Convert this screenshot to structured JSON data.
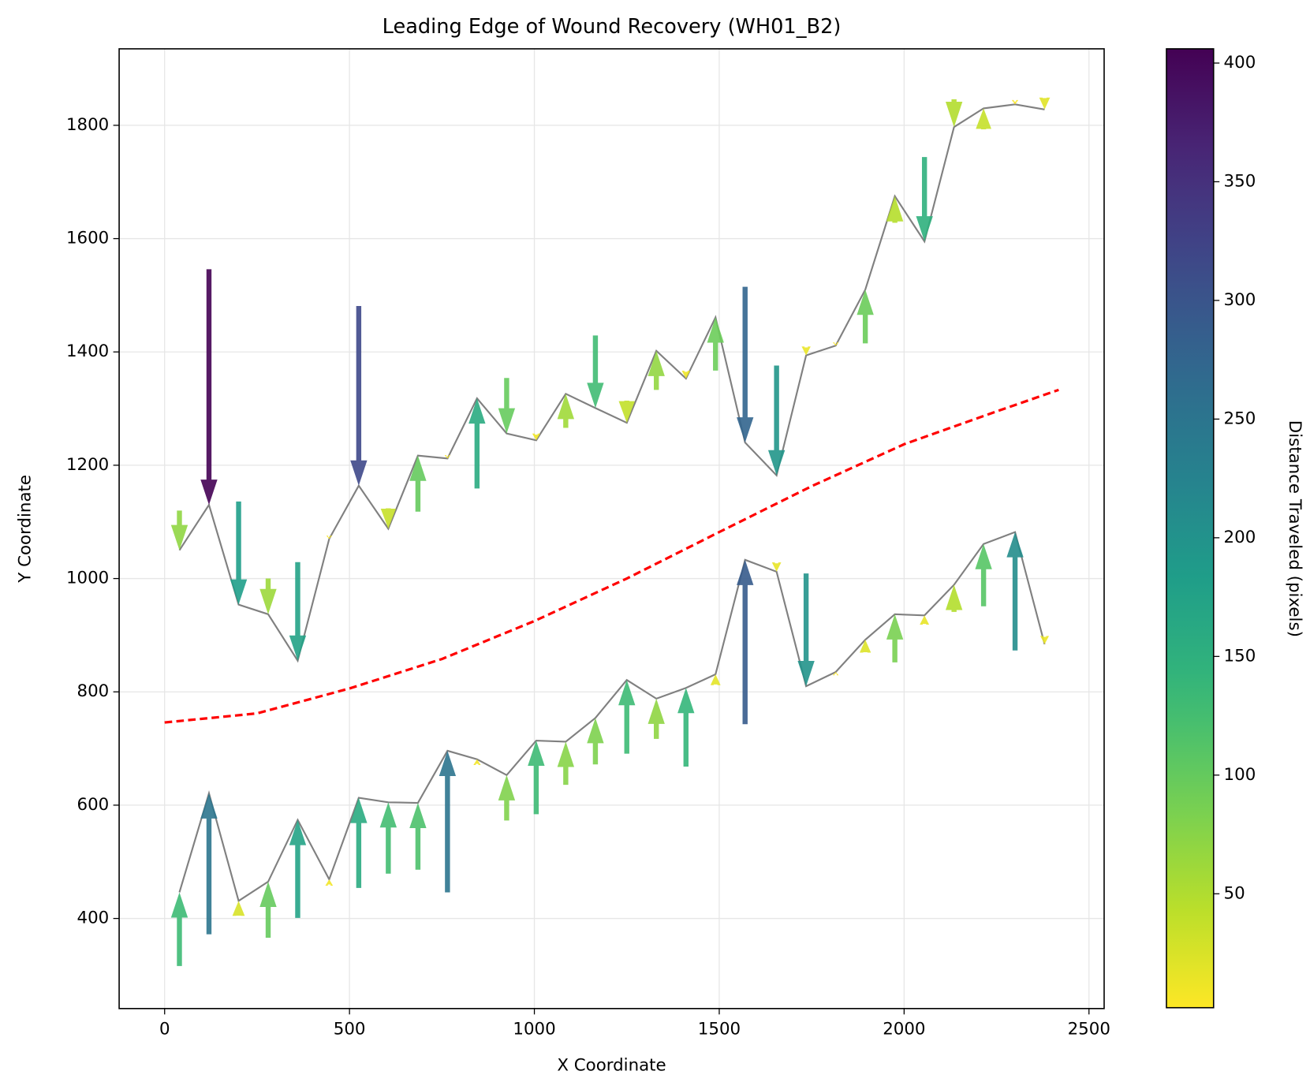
{
  "chart_data": {
    "type": "quiver",
    "title": "Leading Edge of Wound Recovery (WH01_B2)",
    "x_label": "X Coordinate",
    "y_label": "Y Coordinate",
    "colorbar_label": "Distance Traveled (pixels)",
    "colormap": "viridis_r",
    "clim": [
      2,
      406
    ],
    "colorbar_ticks": [
      50,
      100,
      150,
      200,
      250,
      300,
      350,
      400
    ],
    "xlim": [
      -123,
      2541
    ],
    "ylim": [
      241,
      1935
    ],
    "xticks": [
      0,
      500,
      1000,
      1500,
      2000,
      2500
    ],
    "yticks": [
      400,
      600,
      800,
      1000,
      1200,
      1400,
      1600,
      1800
    ],
    "grid": true,
    "edge_color": "gray",
    "x": [
      40,
      120,
      200,
      280,
      360,
      445,
      525,
      605,
      685,
      765,
      845,
      925,
      1005,
      1085,
      1165,
      1250,
      1330,
      1410,
      1490,
      1570,
      1655,
      1735,
      1815,
      1895,
      1975,
      2055,
      2135,
      2215,
      2300,
      2380
    ],
    "series": [
      {
        "values": [
          1050,
          1130,
          954,
          937,
          855,
          1070,
          1164,
          1088,
          1217,
          1212,
          1318,
          1256,
          1244,
          1326,
          1301,
          1275,
          1402,
          1353,
          1461,
          1240,
          1182,
          1394,
          1411,
          1510,
          1675,
          1595,
          1797,
          1830,
          1837,
          1828
        ],
        "start_values": [
          1120,
          1546,
          1136,
          1000,
          1029,
          1073,
          1481,
          1124,
          1118,
          1215,
          1159,
          1354,
          1254,
          1266,
          1429,
          1314,
          1333,
          1365,
          1367,
          1515,
          1376,
          1408,
          1414,
          1415,
          1628,
          1744,
          1846,
          1793,
          1842,
          1848
        ]
      },
      {
        "values": [
          446,
          621,
          431,
          465,
          574,
          469,
          613,
          605,
          604,
          696,
          681,
          653,
          714,
          712,
          754,
          821,
          788,
          807,
          831,
          1033,
          1012,
          810,
          835,
          892,
          937,
          935,
          989,
          1061,
          1082,
          884
        ],
        "start_values": [
          316,
          372,
          405,
          366,
          401,
          460,
          454,
          479,
          486,
          446,
          673,
          573,
          584,
          636,
          672,
          691,
          717,
          668,
          813,
          743,
          1027,
          1009,
          832,
          870,
          852,
          920,
          941,
          951,
          873,
          897
        ]
      }
    ],
    "midline": {
      "color": "red",
      "dashed": true,
      "x": [
        0,
        250,
        500,
        750,
        1000,
        1250,
        1500,
        1750,
        2000,
        2250,
        2418
      ],
      "values": [
        746,
        762,
        806,
        858,
        925,
        1000,
        1082,
        1163,
        1237,
        1295,
        1333
      ]
    }
  }
}
